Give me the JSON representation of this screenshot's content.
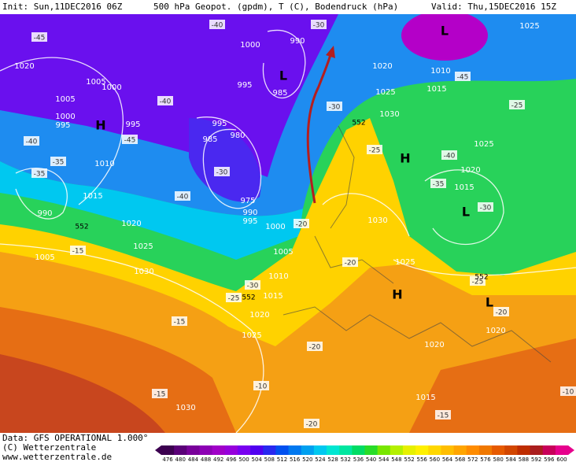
{
  "header": {
    "init": "Init: Sun,11DEC2016 06Z",
    "field": "500 hPa Geopot. (gpdm), T (C), Bodendruck (hPa)",
    "valid": "Valid: Thu,15DEC2016 15Z"
  },
  "pressure_labels": [
    "1025",
    "1010",
    "1015",
    "990",
    "1000",
    "985",
    "995",
    "1020",
    "1025",
    "1030",
    "995",
    "985",
    "980",
    "975",
    "990",
    "995",
    "1000",
    "1005",
    "1010",
    "1015",
    "1020",
    "1025",
    "1030",
    "1025",
    "1020",
    "1015",
    "1025",
    "1020",
    "1020",
    "1015",
    "1030",
    "1030",
    "1025",
    "1020",
    "1015",
    "1010",
    "1005",
    "990",
    "1005",
    "1000",
    "995",
    "1005",
    "1020",
    "995",
    "1000"
  ],
  "temperature_labels": [
    "-40",
    "-30",
    "-45",
    "-40",
    "-45",
    "-30",
    "-40",
    "-35",
    "-35",
    "-40",
    "-30",
    "-25",
    "-40",
    "-35",
    "-30",
    "-20",
    "-15",
    "-20",
    "-25",
    "-20",
    "-20",
    "-15",
    "-10",
    "-15",
    "-20",
    "-15",
    "-10",
    "-30",
    "-25",
    "-45",
    "-25"
  ],
  "pressure_centers": [
    "H",
    "H",
    "H",
    "L",
    "L",
    "L",
    "L"
  ],
  "contour_552": [
    "552",
    "552",
    "552",
    "552"
  ],
  "footer": {
    "data": "Data: GFS OPERATIONAL 1.000°",
    "copyright": "(C) Wetterzentrale",
    "url": "www.wetterzentrale.de"
  },
  "colorbar": {
    "labels": [
      "476",
      "480",
      "484",
      "488",
      "492",
      "496",
      "500",
      "504",
      "508",
      "512",
      "516",
      "520",
      "524",
      "528",
      "532",
      "536",
      "540",
      "544",
      "548",
      "552",
      "556",
      "560",
      "564",
      "568",
      "572",
      "576",
      "580",
      "584",
      "588",
      "592",
      "596",
      "600"
    ],
    "colors": [
      "#3c0050",
      "#5a0078",
      "#78009a",
      "#8c00b4",
      "#a000c8",
      "#9600dc",
      "#7800f0",
      "#5000f0",
      "#2828f0",
      "#0050f0",
      "#0078f0",
      "#00a0f0",
      "#00c8f0",
      "#00e6d2",
      "#00e6a0",
      "#00dc64",
      "#28dc28",
      "#78e600",
      "#b4f000",
      "#e6f000",
      "#fff000",
      "#ffd700",
      "#ffbe00",
      "#ffa500",
      "#ff8c00",
      "#f07800",
      "#e65a00",
      "#d24600",
      "#be2d00",
      "#aa1e1e",
      "#c8005a",
      "#e6008c"
    ]
  }
}
